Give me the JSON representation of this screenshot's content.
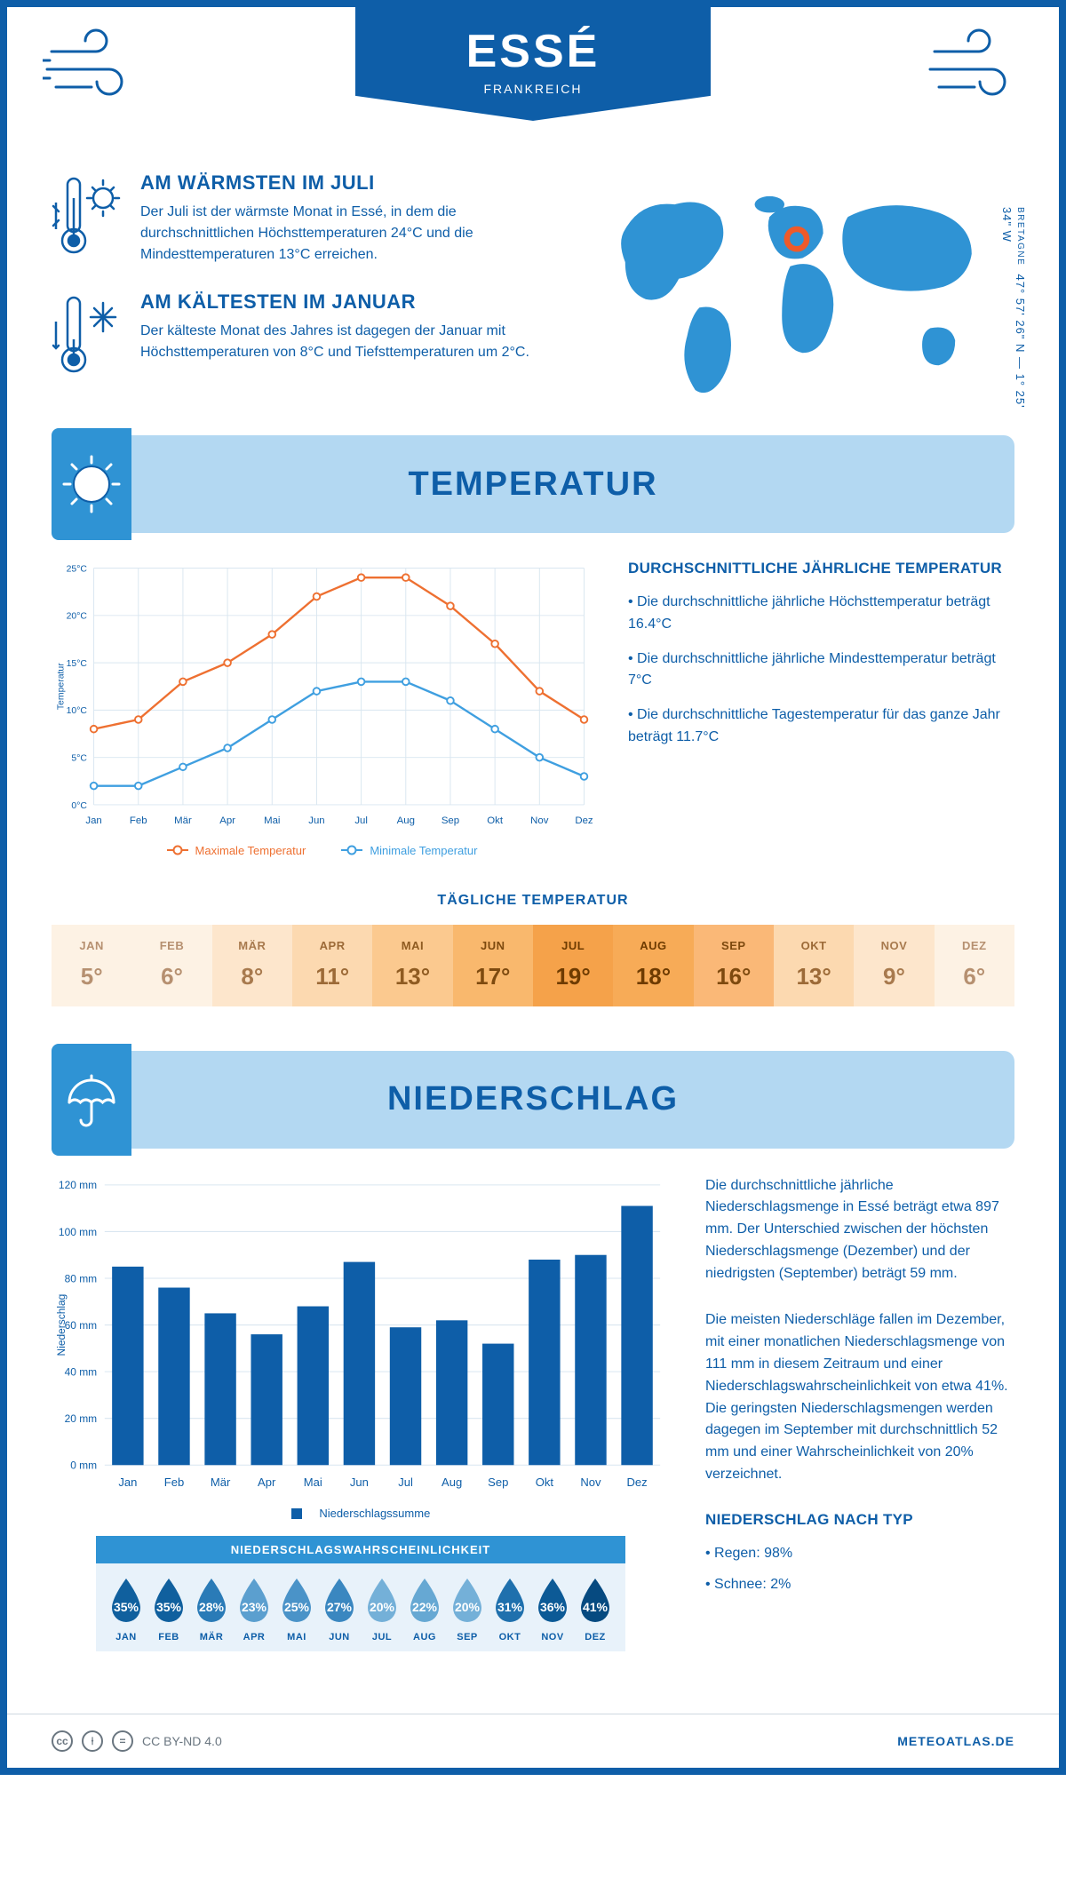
{
  "colors": {
    "brand": "#0e5ea8",
    "accent": "#2f93d4",
    "light": "#b3d8f2",
    "grid": "#d9e6f0",
    "orange": "#ee7031"
  },
  "header": {
    "title": "ESSÉ",
    "subtitle": "FRANKREICH",
    "coords": "47° 57' 26\" N — 1° 25' 34\" W",
    "region": "BRETAGNE"
  },
  "intro": {
    "warm": {
      "title": "AM WÄRMSTEN IM JULI",
      "body": "Der Juli ist der wärmste Monat in Essé, in dem die durchschnittlichen Höchsttemperaturen 24°C und die Mindesttemperaturen 13°C erreichen."
    },
    "cold": {
      "title": "AM KÄLTESTEN IM JANUAR",
      "body": "Der kälteste Monat des Jahres ist dagegen der Januar mit Höchsttemperaturen von 8°C und Tiefsttemperaturen um 2°C."
    }
  },
  "temperature": {
    "section_title": "TEMPERATUR",
    "chart": {
      "type": "line",
      "months": [
        "Jan",
        "Feb",
        "Mär",
        "Apr",
        "Mai",
        "Jun",
        "Jul",
        "Aug",
        "Sep",
        "Okt",
        "Nov",
        "Dez"
      ],
      "max": [
        8,
        9,
        13,
        15,
        18,
        22,
        24,
        24,
        21,
        17,
        12,
        9
      ],
      "min": [
        2,
        2,
        4,
        6,
        9,
        12,
        13,
        13,
        11,
        8,
        5,
        3
      ],
      "ylim": [
        0,
        25
      ],
      "ytick_step": 5,
      "ylabel": "Temperatur",
      "max_color": "#ee7031",
      "min_color": "#3f9fe0",
      "grid_color": "#d9e6f0",
      "background": "#ffffff",
      "line_width": 2.5,
      "marker": "circle-open",
      "marker_size": 4,
      "legend_max": "Maximale Temperatur",
      "legend_min": "Minimale Temperatur"
    },
    "facts": {
      "title": "DURCHSCHNITTLICHE JÄHRLICHE TEMPERATUR",
      "b1": "• Die durchschnittliche jährliche Höchsttemperatur beträgt 16.4°C",
      "b2": "• Die durchschnittliche jährliche Mindesttemperatur beträgt 7°C",
      "b3": "• Die durchschnittliche Tagestemperatur für das ganze Jahr beträgt 11.7°C"
    },
    "daily": {
      "title": "TÄGLICHE TEMPERATUR",
      "months": [
        "JAN",
        "FEB",
        "MÄR",
        "APR",
        "MAI",
        "JUN",
        "JUL",
        "AUG",
        "SEP",
        "OKT",
        "NOV",
        "DEZ"
      ],
      "values": [
        "5°",
        "6°",
        "8°",
        "11°",
        "13°",
        "17°",
        "19°",
        "18°",
        "16°",
        "13°",
        "9°",
        "6°"
      ],
      "bg_colors": [
        "#fdf2e4",
        "#fdf2e4",
        "#fde6cc",
        "#fcd9b0",
        "#fbc98f",
        "#f9b86d",
        "#f5a24a",
        "#f7ab57",
        "#fab877",
        "#fcd9b0",
        "#fde6cc",
        "#fdf2e4"
      ],
      "text_colors": [
        "#b69070",
        "#b69070",
        "#a87a4e",
        "#9c6a37",
        "#8f5b21",
        "#7e4a0f",
        "#6e3b00",
        "#6e3b00",
        "#7e4a0f",
        "#9c6a37",
        "#a87a4e",
        "#b69070"
      ]
    }
  },
  "precip": {
    "section_title": "NIEDERSCHLAG",
    "chart": {
      "type": "bar",
      "months": [
        "Jan",
        "Feb",
        "Mär",
        "Apr",
        "Mai",
        "Jun",
        "Jul",
        "Aug",
        "Sep",
        "Okt",
        "Nov",
        "Dez"
      ],
      "values": [
        85,
        76,
        65,
        56,
        68,
        87,
        59,
        62,
        52,
        88,
        90,
        111
      ],
      "ylim": [
        0,
        120
      ],
      "ytick_step": 20,
      "ylabel": "Niederschlag",
      "bar_color": "#0e5ea8",
      "grid_color": "#d9e6f0",
      "background": "#ffffff",
      "legend": "Niederschlagssumme"
    },
    "text": {
      "p1": "Die durchschnittliche jährliche Niederschlagsmenge in Essé beträgt etwa 897 mm. Der Unterschied zwischen der höchsten Niederschlagsmenge (Dezember) und der niedrigsten (September) beträgt 59 mm.",
      "p2": "Die meisten Niederschläge fallen im Dezember, mit einer monatlichen Niederschlagsmenge von 111 mm in diesem Zeitraum und einer Niederschlagswahrscheinlichkeit von etwa 41%. Die geringsten Niederschlagsmengen werden dagegen im September mit durchschnittlich 52 mm und einer Wahrscheinlichkeit von 20% verzeichnet.",
      "type_title": "NIEDERSCHLAG NACH TYP",
      "type1": "• Regen: 98%",
      "type2": "• Schnee: 2%"
    },
    "prob": {
      "title": "NIEDERSCHLAGSWAHRSCHEINLICHKEIT",
      "months": [
        "JAN",
        "FEB",
        "MÄR",
        "APR",
        "MAI",
        "JUN",
        "JUL",
        "AUG",
        "SEP",
        "OKT",
        "NOV",
        "DEZ"
      ],
      "pct": [
        "35%",
        "35%",
        "28%",
        "23%",
        "25%",
        "27%",
        "20%",
        "22%",
        "20%",
        "31%",
        "36%",
        "41%"
      ],
      "colors": [
        "#10609e",
        "#10609e",
        "#2a7bb7",
        "#5b9fcf",
        "#4a93c8",
        "#3a87c0",
        "#74b0d8",
        "#66a8d3",
        "#74b0d8",
        "#1f70ad",
        "#0c5a96",
        "#064a80"
      ]
    }
  },
  "footer": {
    "license": "CC BY-ND 4.0",
    "site": "METEOATLAS.DE"
  }
}
